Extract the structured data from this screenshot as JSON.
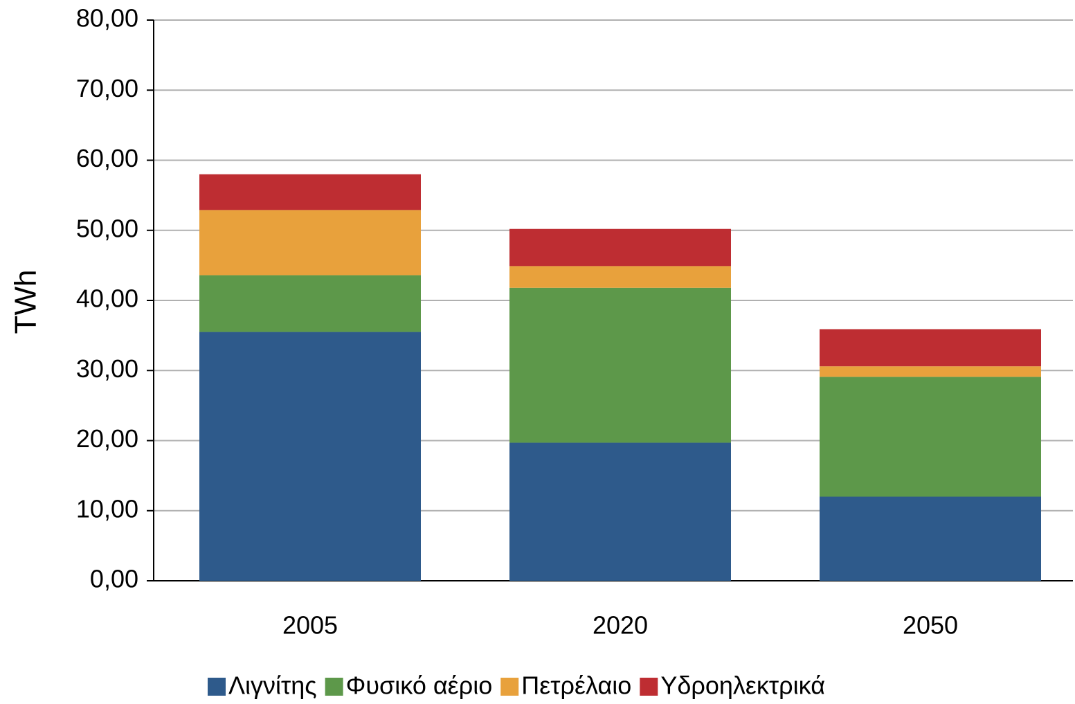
{
  "chart_data": {
    "type": "stacked_bar",
    "y_label": "TWh",
    "categories": [
      "2005",
      "2020",
      "2050"
    ],
    "series": [
      {
        "name": "Λιγνίτης",
        "color": "#2e5a8b",
        "values": [
          35.5,
          19.7,
          12.0
        ]
      },
      {
        "name": "Φυσικό αέριο",
        "color": "#5d984a",
        "values": [
          8.1,
          22.1,
          17.1
        ]
      },
      {
        "name": "Πετρέλαιο",
        "color": "#e8a13c",
        "values": [
          9.3,
          3.1,
          1.5
        ]
      },
      {
        "name": "Υδροηλεκτρικά",
        "color": "#be2d32",
        "values": [
          5.1,
          5.3,
          5.3
        ]
      }
    ],
    "ylim": [
      0,
      80
    ],
    "yticks": [
      {
        "value": 0,
        "label": "0,00"
      },
      {
        "value": 10,
        "label": "10,00"
      },
      {
        "value": 20,
        "label": "20,00"
      },
      {
        "value": 30,
        "label": "30,00"
      },
      {
        "value": 40,
        "label": "40,00"
      },
      {
        "value": 50,
        "label": "50,00"
      },
      {
        "value": 60,
        "label": "60,00"
      },
      {
        "value": 70,
        "label": "70,00"
      },
      {
        "value": 80,
        "label": "80,00"
      }
    ],
    "grid": true,
    "legend": "bottom"
  }
}
